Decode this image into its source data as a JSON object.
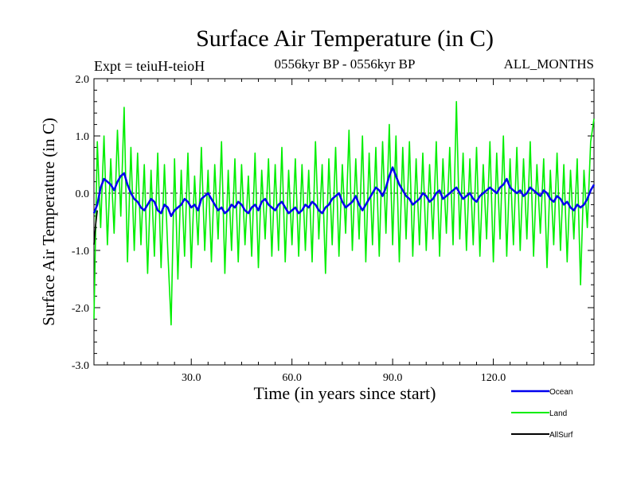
{
  "chart_data": {
    "type": "line",
    "title": "Surface Air Temperature (in C)",
    "subtitle_left": "Expt = teiuH-teioH",
    "subtitle_center": "0556kyr BP - 0556kyr BP",
    "subtitle_right": "ALL_MONTHS",
    "xlabel": "Time (in years since start)",
    "ylabel": "Surface Air Temperature (in C)",
    "xlim": [
      1,
      150
    ],
    "ylim": [
      -3.0,
      2.0
    ],
    "xticks": [
      30,
      60,
      90,
      120
    ],
    "xtick_labels": [
      "30.0",
      "60.0",
      "90.0",
      "120.0"
    ],
    "yticks": [
      2.0,
      1.0,
      0.0,
      -1.0,
      -2.0,
      -3.0
    ],
    "ytick_labels": [
      "2.0",
      "1.0",
      "0.0",
      "-1.0",
      "-2.0",
      "-3.0"
    ],
    "zero_reference_line": 0.0,
    "legend_position": "bottom-right",
    "series": [
      {
        "name": "Land",
        "color": "#00ee00",
        "x": [
          1,
          2,
          3,
          4,
          5,
          6,
          7,
          8,
          9,
          10,
          11,
          12,
          13,
          14,
          15,
          16,
          17,
          18,
          19,
          20,
          21,
          22,
          23,
          24,
          25,
          26,
          27,
          28,
          29,
          30,
          31,
          32,
          33,
          34,
          35,
          36,
          37,
          38,
          39,
          40,
          41,
          42,
          43,
          44,
          45,
          46,
          47,
          48,
          49,
          50,
          51,
          52,
          53,
          54,
          55,
          56,
          57,
          58,
          59,
          60,
          61,
          62,
          63,
          64,
          65,
          66,
          67,
          68,
          69,
          70,
          71,
          72,
          73,
          74,
          75,
          76,
          77,
          78,
          79,
          80,
          81,
          82,
          83,
          84,
          85,
          86,
          87,
          88,
          89,
          90,
          91,
          92,
          93,
          94,
          95,
          96,
          97,
          98,
          99,
          100,
          101,
          102,
          103,
          104,
          105,
          106,
          107,
          108,
          109,
          110,
          111,
          112,
          113,
          114,
          115,
          116,
          117,
          118,
          119,
          120,
          121,
          122,
          123,
          124,
          125,
          126,
          127,
          128,
          129,
          130,
          131,
          132,
          133,
          134,
          135,
          136,
          137,
          138,
          139,
          140,
          141,
          142,
          143,
          144,
          145,
          146,
          147,
          148,
          149,
          150
        ],
        "values": [
          -2.2,
          0.9,
          -0.6,
          1.0,
          -0.9,
          0.6,
          -0.7,
          1.1,
          -0.4,
          1.5,
          -1.2,
          0.8,
          -1.0,
          0.7,
          -0.9,
          0.5,
          -1.4,
          0.4,
          -1.1,
          0.7,
          -1.3,
          0.5,
          -1.0,
          -2.3,
          0.6,
          -1.5,
          0.4,
          -1.1,
          0.7,
          -1.3,
          0.3,
          -0.9,
          0.8,
          -1.0,
          0.4,
          -1.2,
          0.5,
          -0.8,
          0.9,
          -1.4,
          0.4,
          -1.0,
          0.6,
          -1.2,
          0.5,
          -0.9,
          0.3,
          -1.1,
          0.7,
          -1.3,
          0.4,
          -0.8,
          0.6,
          -1.1,
          0.5,
          -1.0,
          0.8,
          -1.2,
          0.4,
          -0.9,
          0.6,
          -1.1,
          0.5,
          -1.0,
          0.4,
          -1.2,
          0.9,
          -0.8,
          0.5,
          -1.4,
          0.6,
          -0.9,
          0.8,
          -1.1,
          0.5,
          -0.7,
          1.1,
          -1.0,
          0.6,
          -0.8,
          1.0,
          -1.2,
          0.7,
          -0.9,
          0.8,
          -1.1,
          0.9,
          -0.7,
          1.2,
          -0.9,
          1.0,
          -1.2,
          0.8,
          -0.8,
          0.9,
          -1.1,
          0.6,
          -0.9,
          0.7,
          -1.0,
          0.5,
          -0.8,
          0.9,
          -1.1,
          0.6,
          -0.7,
          0.8,
          -0.9,
          1.6,
          -0.8,
          0.7,
          -1.0,
          0.6,
          -0.9,
          0.8,
          -1.1,
          0.5,
          -0.8,
          0.9,
          -1.2,
          0.7,
          -0.8,
          1.0,
          -1.1,
          0.6,
          -0.9,
          0.8,
          -1.0,
          0.6,
          -0.8,
          0.9,
          -1.1,
          0.5,
          -0.7,
          0.6,
          -1.3,
          0.4,
          -0.9,
          0.7,
          -1.0,
          0.5,
          -1.2,
          0.4,
          -0.8,
          0.6,
          -1.6,
          0.4,
          -0.6,
          0.9,
          1.3
        ]
      },
      {
        "name": "Ocean",
        "color": "#0000ee",
        "x": [
          1,
          2,
          3,
          4,
          5,
          6,
          7,
          8,
          9,
          10,
          11,
          12,
          13,
          14,
          15,
          16,
          17,
          18,
          19,
          20,
          21,
          22,
          23,
          24,
          25,
          26,
          27,
          28,
          29,
          30,
          31,
          32,
          33,
          34,
          35,
          36,
          37,
          38,
          39,
          40,
          41,
          42,
          43,
          44,
          45,
          46,
          47,
          48,
          49,
          50,
          51,
          52,
          53,
          54,
          55,
          56,
          57,
          58,
          59,
          60,
          61,
          62,
          63,
          64,
          65,
          66,
          67,
          68,
          69,
          70,
          71,
          72,
          73,
          74,
          75,
          76,
          77,
          78,
          79,
          80,
          81,
          82,
          83,
          84,
          85,
          86,
          87,
          88,
          89,
          90,
          91,
          92,
          93,
          94,
          95,
          96,
          97,
          98,
          99,
          100,
          101,
          102,
          103,
          104,
          105,
          106,
          107,
          108,
          109,
          110,
          111,
          112,
          113,
          114,
          115,
          116,
          117,
          118,
          119,
          120,
          121,
          122,
          123,
          124,
          125,
          126,
          127,
          128,
          129,
          130,
          131,
          132,
          133,
          134,
          135,
          136,
          137,
          138,
          139,
          140,
          141,
          142,
          143,
          144,
          145,
          146,
          147,
          148,
          149,
          150
        ],
        "values": [
          -0.35,
          -0.2,
          0.1,
          0.25,
          0.2,
          0.15,
          0.05,
          0.2,
          0.3,
          0.35,
          0.15,
          0.0,
          -0.1,
          -0.15,
          -0.25,
          -0.3,
          -0.2,
          -0.1,
          -0.15,
          -0.3,
          -0.35,
          -0.2,
          -0.25,
          -0.4,
          -0.3,
          -0.25,
          -0.2,
          -0.1,
          -0.15,
          -0.25,
          -0.2,
          -0.3,
          -0.1,
          -0.05,
          0.0,
          -0.1,
          -0.2,
          -0.3,
          -0.25,
          -0.35,
          -0.3,
          -0.2,
          -0.25,
          -0.15,
          -0.2,
          -0.3,
          -0.35,
          -0.25,
          -0.2,
          -0.3,
          -0.15,
          -0.1,
          -0.2,
          -0.25,
          -0.3,
          -0.2,
          -0.15,
          -0.25,
          -0.35,
          -0.3,
          -0.25,
          -0.35,
          -0.3,
          -0.2,
          -0.25,
          -0.15,
          -0.2,
          -0.3,
          -0.35,
          -0.25,
          -0.2,
          -0.1,
          -0.05,
          0.0,
          -0.15,
          -0.25,
          -0.2,
          -0.15,
          -0.05,
          -0.2,
          -0.3,
          -0.2,
          -0.1,
          0.0,
          0.1,
          0.05,
          -0.05,
          0.1,
          0.3,
          0.45,
          0.3,
          0.15,
          0.05,
          -0.05,
          -0.1,
          -0.2,
          -0.15,
          -0.1,
          0.0,
          -0.05,
          -0.15,
          -0.1,
          0.0,
          0.05,
          -0.1,
          -0.05,
          0.0,
          0.05,
          0.1,
          0.0,
          -0.1,
          -0.05,
          0.0,
          -0.1,
          -0.15,
          -0.05,
          0.0,
          0.05,
          0.1,
          0.05,
          0.0,
          0.1,
          0.15,
          0.25,
          0.1,
          0.05,
          0.0,
          0.05,
          -0.05,
          0.0,
          0.1,
          0.05,
          0.0,
          -0.05,
          0.05,
          0.0,
          -0.1,
          -0.15,
          -0.05,
          -0.1,
          -0.2,
          -0.15,
          -0.25,
          -0.3,
          -0.2,
          -0.25,
          -0.2,
          -0.1,
          0.05,
          0.15
        ]
      },
      {
        "name": "AllSurf",
        "color": "#000000",
        "x": [
          1,
          1.5,
          2
        ],
        "values": [
          -0.9,
          -0.55,
          -0.3
        ]
      }
    ],
    "legend_entries": [
      "Ocean",
      "Land",
      "AllSurf"
    ]
  }
}
